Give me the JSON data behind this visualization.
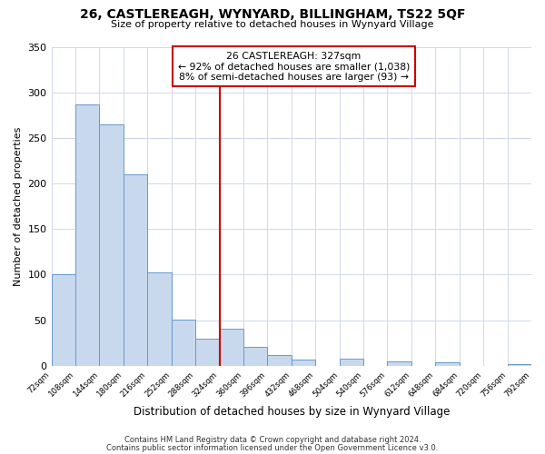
{
  "title": "26, CASTLEREAGH, WYNYARD, BILLINGHAM, TS22 5QF",
  "subtitle": "Size of property relative to detached houses in Wynyard Village",
  "xlabel": "Distribution of detached houses by size in Wynyard Village",
  "ylabel": "Number of detached properties",
  "bin_edges": [
    72,
    108,
    144,
    180,
    216,
    252,
    288,
    324,
    360,
    396,
    432,
    468,
    504,
    540,
    576,
    612,
    648,
    684,
    720,
    756,
    792
  ],
  "bar_heights": [
    100,
    287,
    265,
    210,
    102,
    51,
    30,
    41,
    21,
    12,
    7,
    0,
    8,
    0,
    5,
    0,
    4,
    0,
    0,
    2
  ],
  "bar_color": "#c8d9ee",
  "bar_edge_color": "#6699cc",
  "vline_x": 324,
  "vline_color": "#cc0000",
  "annotation_title": "26 CASTLEREAGH: 327sqm",
  "annotation_line1": "← 92% of detached houses are smaller (1,038)",
  "annotation_line2": "8% of semi-detached houses are larger (93) →",
  "annotation_box_color": "#cc0000",
  "ylim": [
    0,
    350
  ],
  "tick_labels": [
    "72sqm",
    "108sqm",
    "144sqm",
    "180sqm",
    "216sqm",
    "252sqm",
    "288sqm",
    "324sqm",
    "360sqm",
    "396sqm",
    "432sqm",
    "468sqm",
    "504sqm",
    "540sqm",
    "576sqm",
    "612sqm",
    "648sqm",
    "684sqm",
    "720sqm",
    "756sqm",
    "792sqm"
  ],
  "footer1": "Contains HM Land Registry data © Crown copyright and database right 2024.",
  "footer2": "Contains public sector information licensed under the Open Government Licence v3.0.",
  "grid_color": "#d0d8e8",
  "background_color": "#ffffff",
  "plot_bg_color": "#ffffff"
}
